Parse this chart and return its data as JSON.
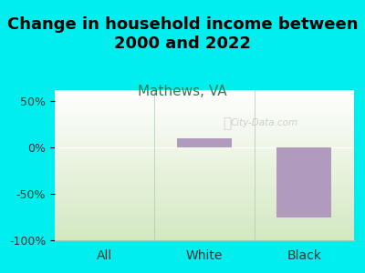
{
  "title": "Change in household income between\n2000 and 2022",
  "subtitle": "Mathews, VA",
  "categories": [
    "All",
    "White",
    "Black"
  ],
  "values": [
    0.5,
    10.0,
    -75.0
  ],
  "bar_color": "#b09abd",
  "bar_color_all": "#e8a0b0",
  "ylim": [
    -100,
    62
  ],
  "yticks": [
    -100,
    -50,
    0,
    50
  ],
  "yticklabels": [
    "-100%",
    "-50%",
    "0%",
    "50%"
  ],
  "bg_color": "#00eeee",
  "plot_bg_top": "#ffffff",
  "plot_bg_bottom": "#d4e8c2",
  "title_fontsize": 13,
  "subtitle_fontsize": 11,
  "subtitle_color": "#2d7a5a",
  "watermark": "City-Data.com"
}
